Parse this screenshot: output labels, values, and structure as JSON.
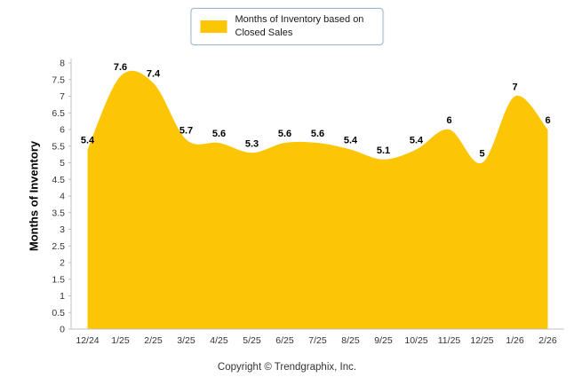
{
  "legend": {
    "label": "Months of Inventory based on Closed Sales"
  },
  "y_axis": {
    "title": "Months of Inventory"
  },
  "footer": {
    "copyright": "Copyright © Trendgraphix, Inc."
  },
  "chart_data": {
    "type": "area",
    "title": "Months of Inventory based on Closed Sales",
    "xlabel": "",
    "ylabel": "Months of Inventory",
    "categories": [
      "12/24",
      "1/25",
      "2/25",
      "3/25",
      "4/25",
      "5/25",
      "6/25",
      "7/25",
      "8/25",
      "9/25",
      "10/25",
      "11/25",
      "12/25",
      "1/26",
      "2/26"
    ],
    "values": [
      5.4,
      7.6,
      7.4,
      5.7,
      5.6,
      5.3,
      5.6,
      5.6,
      5.4,
      5.1,
      5.4,
      6,
      5,
      7,
      6
    ],
    "ylim": [
      0,
      8
    ],
    "ytick_step": 0.5,
    "grid": false,
    "legend_position": "top-center",
    "fill_color": "#FCC606",
    "label_color": "#000000",
    "tick_color": "#333333",
    "axis_color": "#c0c0c0"
  }
}
